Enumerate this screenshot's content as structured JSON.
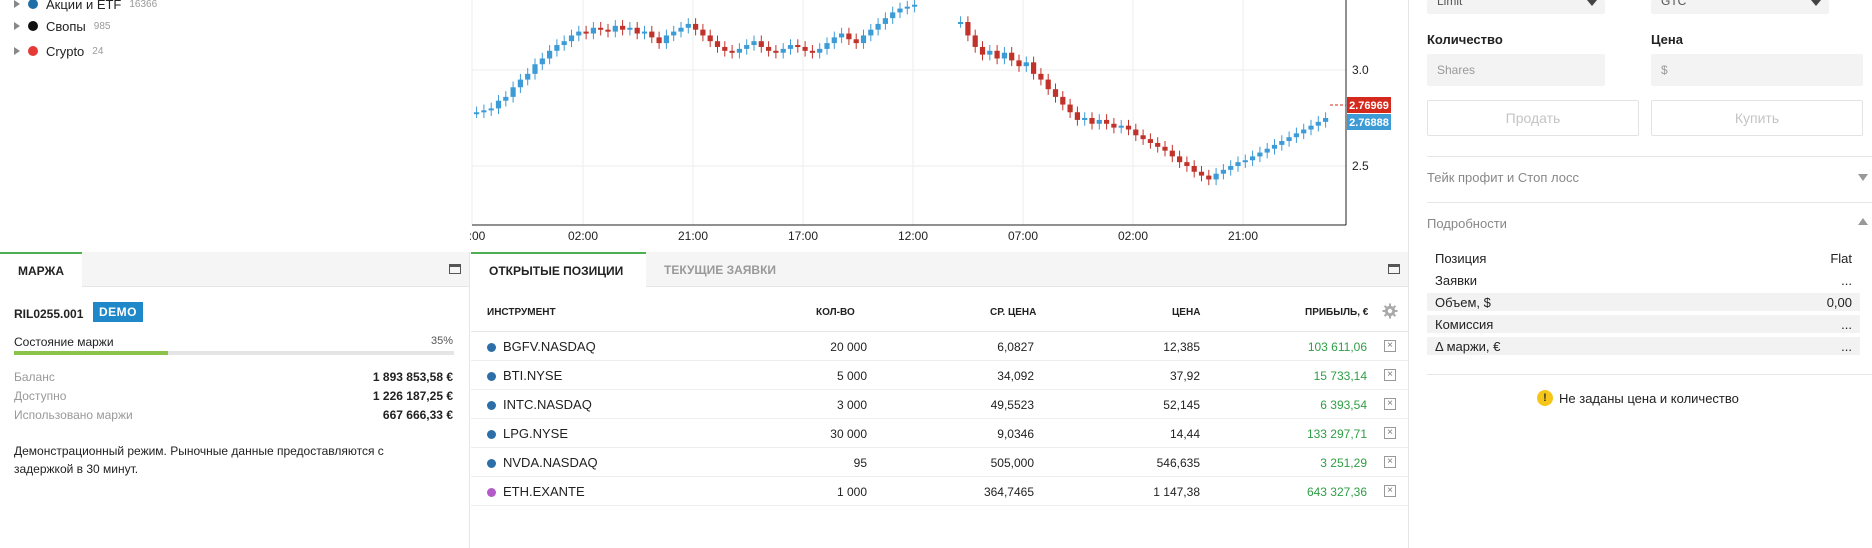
{
  "tree": {
    "items": [
      {
        "label": "Акции и ETF",
        "count": "16366",
        "color": "#1e6fa8"
      },
      {
        "label": "Свопы",
        "count": "985",
        "color": "#111111"
      },
      {
        "label": "Crypto",
        "count": "24",
        "color": "#e53935"
      }
    ]
  },
  "chart_data": {
    "type": "candlestick",
    "time_labels": [
      ":00",
      "02:00",
      "21:00",
      "17:00",
      "12:00",
      "07:00",
      "02:00",
      "21:00"
    ],
    "y_ticks": [
      "3.0",
      "2.5"
    ],
    "ask_price": "2.76969",
    "bid_price": "2.76888",
    "ask_color": "#d42a1e",
    "bid_color": "#3d9bd6",
    "up_color": "#3d9bd6",
    "down_color": "#c0322a",
    "close_series": [
      2.78,
      2.79,
      2.8,
      2.86,
      2.91,
      2.95,
      2.98,
      3.03,
      3.06,
      3.1,
      3.13,
      3.15,
      3.18,
      3.2,
      3.19,
      3.22,
      3.21,
      3.2,
      3.23,
      3.21,
      3.22,
      3.19,
      3.2,
      3.17,
      3.14,
      3.18,
      3.2,
      3.22,
      3.24,
      3.21,
      3.18,
      3.15,
      3.12,
      3.1,
      3.09,
      3.11,
      3.13,
      3.15,
      3.12,
      3.1,
      3.09,
      3.11,
      3.13,
      3.12,
      3.1,
      3.09,
      3.11,
      3.14,
      3.17,
      3.19,
      3.16,
      3.14,
      3.18,
      3.21,
      3.24,
      3.27,
      3.3,
      3.32,
      3.33,
      3.34
    ]
  },
  "margin_panel": {
    "tab": "МАРЖА",
    "account_id": "RIL0255.001",
    "badge": "DEMO",
    "margin_state_label": "Состояние маржи",
    "margin_pct": "35%",
    "margin_fraction": 0.35,
    "rows": [
      {
        "key": "Баланс",
        "value": "1 893 853,58 €"
      },
      {
        "key": "Доступно",
        "value": "1 226 187,25 €"
      },
      {
        "key": "Использовано маржи",
        "value": "667 666,33 €"
      }
    ],
    "note": "Демонстрационный режим. Рыночные данные предоставляются с задержкой в 30 минут."
  },
  "positions_panel": {
    "tabs": [
      "ОТКРЫТЫЕ ПОЗИЦИИ",
      "ТЕКУЩИЕ ЗАЯВКИ"
    ],
    "columns": [
      "ИНСТРУМЕНТ",
      "КОЛ-ВО",
      "СР. ЦЕНА",
      "ЦЕНА",
      "ПРИБЫЛЬ, €"
    ],
    "rows": [
      {
        "instrument": "BGFV.NASDAQ",
        "qty": "20 000",
        "avg": "6,0827",
        "price": "12,385",
        "profit": "103 611,06",
        "color": "#2b6ea8"
      },
      {
        "instrument": "BTI.NYSE",
        "qty": "5 000",
        "avg": "34,092",
        "price": "37,92",
        "profit": "15 733,14",
        "color": "#2b6ea8"
      },
      {
        "instrument": "INTC.NASDAQ",
        "qty": "3 000",
        "avg": "49,5523",
        "price": "52,145",
        "profit": "6 393,54",
        "color": "#2b6ea8"
      },
      {
        "instrument": "LPG.NYSE",
        "qty": "30 000",
        "avg": "9,0346",
        "price": "14,44",
        "profit": "133 297,71",
        "color": "#2b6ea8"
      },
      {
        "instrument": "NVDA.NASDAQ",
        "qty": "95",
        "avg": "505,000",
        "price": "546,635",
        "profit": "3 251,29",
        "color": "#2b6ea8"
      },
      {
        "instrument": "ETH.EXANTE",
        "qty": "1 000",
        "avg": "364,7465",
        "price": "1 147,38",
        "profit": "643 327,36",
        "color": "#b35ac8"
      }
    ]
  },
  "order_panel": {
    "order_type": "Limit",
    "duration": "GTC",
    "qty_label": "Количество",
    "price_label": "Цена",
    "qty_placeholder": "Shares",
    "price_placeholder": "$",
    "sell_label": "Продать",
    "buy_label": "Купить",
    "tp_sl_label": "Тейк профит и Стоп лосс",
    "details_label": "Подробности",
    "details": [
      {
        "key": "Позиция",
        "value": "Flat"
      },
      {
        "key": "Заявки",
        "value": "..."
      },
      {
        "key": "Объем, $",
        "value": "0,00"
      },
      {
        "key": "Комиссия",
        "value": "..."
      },
      {
        "key": "Δ маржи, €",
        "value": "..."
      }
    ],
    "warning": "Не заданы цена и количество"
  }
}
